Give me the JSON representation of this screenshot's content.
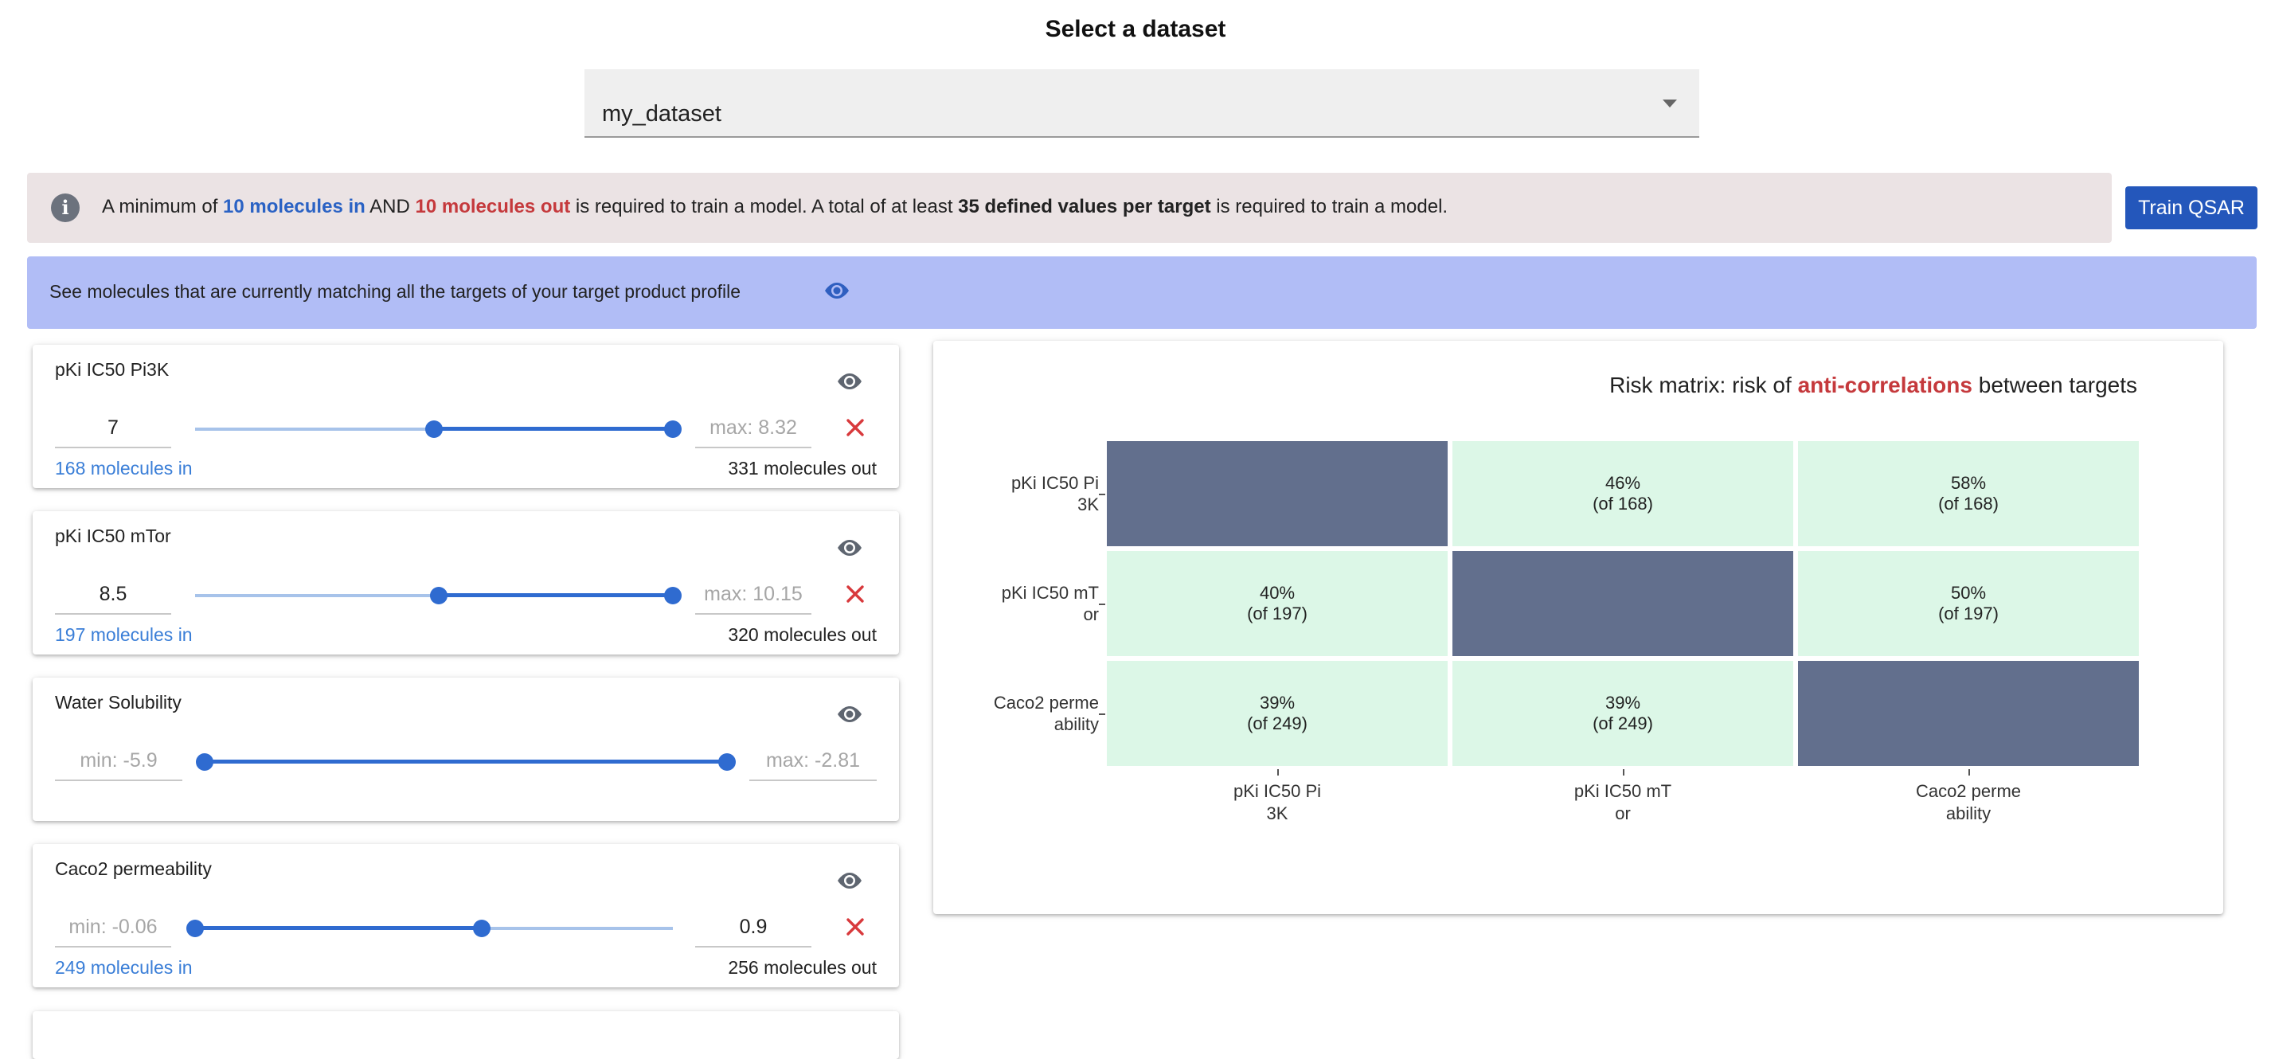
{
  "header": {
    "title": "Select a dataset"
  },
  "dataset_select": {
    "value": "my_dataset",
    "icon": "chevron-down-icon"
  },
  "info_banner": {
    "icon": "info-icon",
    "part1": "A minimum of ",
    "min_in": "10 molecules in",
    "part2": " AND ",
    "min_out": "10 molecules out",
    "part3": " is required to train a model. A total of at least ",
    "defined": "35 defined values per target",
    "part4": " is required to train a model."
  },
  "train_button": {
    "label": "Train QSAR"
  },
  "tpp_banner": {
    "text": "See molecules that are currently matching all the targets of your target product profile",
    "icon": "eye-icon"
  },
  "targets": [
    {
      "name": "pKi IC50 Pi3K",
      "min_value": "7",
      "max_placeholder": "max: 8.32",
      "level_min": 0.5,
      "level_max": 1.0,
      "count_in": "168 molecules in",
      "count_out": "331 molecules out"
    },
    {
      "name": "pKi IC50 mTor",
      "min_value": "8.5",
      "max_placeholder": "max: 10.15",
      "level_min": 0.51,
      "level_max": 1.0,
      "count_in": "197 molecules in",
      "count_out": "320 molecules out"
    },
    {
      "name": "Water Solubility",
      "min_placeholder": "min: -5.9",
      "max_placeholder": "max: -2.81",
      "level_min": 0.0,
      "level_max": 1.0
    },
    {
      "name": "Caco2 permeability",
      "min_placeholder": "min: -0.06",
      "max_value": "0.9",
      "level_min": 0.0,
      "level_max": 0.6,
      "count_in": "249 molecules in",
      "count_out": "256 molecules out"
    }
  ],
  "risk_matrix": {
    "title_prefix": "Risk matrix: risk of ",
    "title_highlight": "anti-correlations",
    "title_suffix": " between targets",
    "colors": {
      "diagonal": "#626f8d",
      "cell": "#dcf7e7",
      "highlight": "#c5393c"
    },
    "row_labels": [
      {
        "l1": "pKi IC50 Pi",
        "l2": "3K"
      },
      {
        "l1": "pKi IC50 mT",
        "l2": "or"
      },
      {
        "l1": "Caco2 perme",
        "l2": "ability"
      }
    ],
    "col_labels": [
      {
        "l1": "pKi IC50 Pi",
        "l2": "3K"
      },
      {
        "l1": "pKi IC50 mT",
        "l2": "or"
      },
      {
        "l1": "Caco2 perme",
        "l2": "ability"
      }
    ],
    "rows": [
      [
        {
          "diag": true
        },
        {
          "pct": "46%",
          "of": "(of 168)"
        },
        {
          "pct": "58%",
          "of": "(of 168)"
        }
      ],
      [
        {
          "pct": "40%",
          "of": "(of 197)"
        },
        {
          "diag": true
        },
        {
          "pct": "50%",
          "of": "(of 197)"
        }
      ],
      [
        {
          "pct": "39%",
          "of": "(of 249)"
        },
        {
          "pct": "39%",
          "of": "(of 249)"
        },
        {
          "diag": true
        }
      ]
    ]
  }
}
